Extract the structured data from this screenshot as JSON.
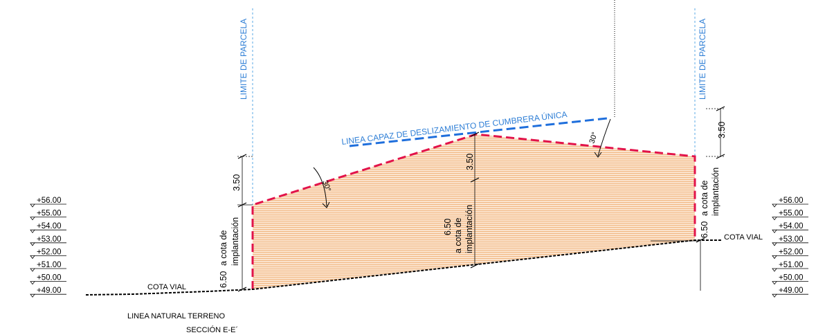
{
  "colors": {
    "fill": "#f4c9a0",
    "envelope": "#e2134a",
    "ridge_line": "#1f6fdc",
    "parcel_limit": "#5aa9e6",
    "ink": "#000000"
  },
  "labels": {
    "parcel_limit_left": "LIMITE DE PARCELA",
    "parcel_limit_right": "LIMITE DE PARCELA",
    "ridge_line": "LINEA CAPAZ DE DESLIZAMIENTO DE CUMBRERA ÚNICA",
    "cota_vial_left": "COTA VIAL",
    "cota_vial_right": "COTA VIAL",
    "terrain": "LINEA  NATURAL TERRENO",
    "section": "SECCIÓN E-E´"
  },
  "dimensions": {
    "left_height": "3.50",
    "left_base_value": "6.50",
    "left_base_line1": "a  cota  de",
    "left_base_line2": "implantación",
    "mid_height": "3.50",
    "mid_base_value": "6.50",
    "mid_base_line1": "a  cota  de",
    "mid_base_line2": "implantación",
    "right_height": "3.50",
    "right_base_value": "6.50",
    "right_base_line1": "a  cota  de",
    "right_base_line2": "implantación",
    "angle_left": "30°",
    "angle_right": "30°"
  },
  "levels_left": [
    "+56.00",
    "+55.00",
    "+54.00",
    "+53.00",
    "+52.00",
    "+51.00",
    "+50.00",
    "+49.00"
  ],
  "levels_right": [
    "+56.00",
    "+55.00",
    "+54.00",
    "+53.00",
    "+52.00",
    "+51.00",
    "+50.00",
    "+49.00"
  ]
}
